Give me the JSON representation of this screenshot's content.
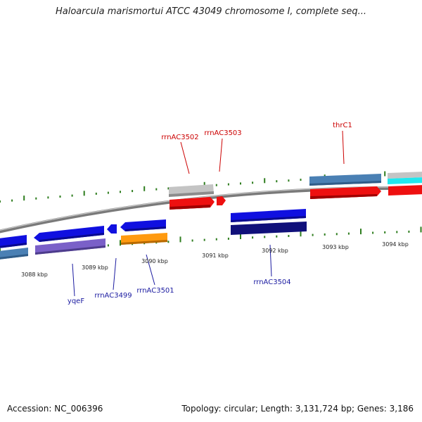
{
  "title": "Haloarcula marismortui ATCC 43049 chromosome I, complete seq...",
  "footer": {
    "accession": "Accession: NC_006396",
    "summary": "Topology: circular; Length: 3,131,724 bp; Genes: 3,186"
  },
  "ruler_labels": [
    "3088 kbp",
    "3089 kbp",
    "3090 kbp",
    "3091 kbp",
    "3092 kbp",
    "3093 kbp",
    "3094 kbp"
  ],
  "gene_labels_top": [
    "rrnAC3502",
    "rrnAC3503",
    "thrC1"
  ],
  "gene_labels_bottom": [
    "yqeF",
    "rrnAC3499",
    "rrnAC3501",
    "rrnAC3504"
  ],
  "colors": {
    "tick": "#2e7d1e",
    "backbone": "#8a8a8a",
    "blue": "#1010e0",
    "navy": "#10107a",
    "steelblue": "#4a80b4",
    "purple": "#7a60c8",
    "orange": "#ff9a10",
    "red": "#ee1010",
    "gray": "#c0c0c0",
    "cyan": "#20e8ee"
  }
}
